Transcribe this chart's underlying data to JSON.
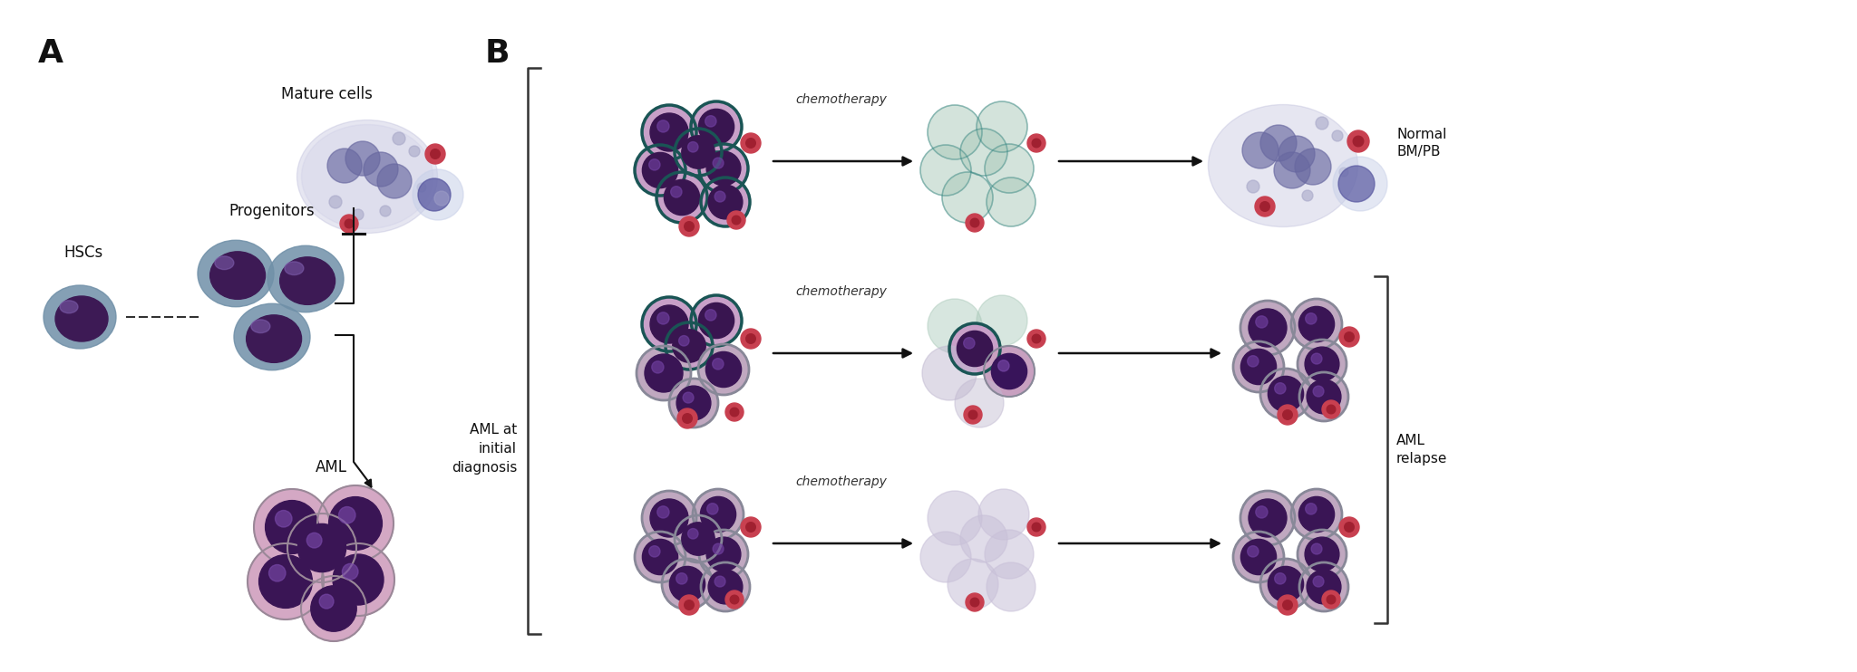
{
  "panel_A_label": "A",
  "panel_B_label": "B",
  "HSCs_label": "HSCs",
  "progenitors_label": "Progenitors",
  "mature_cells_label": "Mature cells",
  "AML_label": "AML",
  "AML_at_label": "AML at\ninitial\ndiagnosis",
  "Normal_BM_PB_label": "Normal\nBM/PB",
  "AML_relapse_label": "AML\nrelapse",
  "chemotherapy_label": "chemotherapy",
  "bg_color": "#ffffff"
}
